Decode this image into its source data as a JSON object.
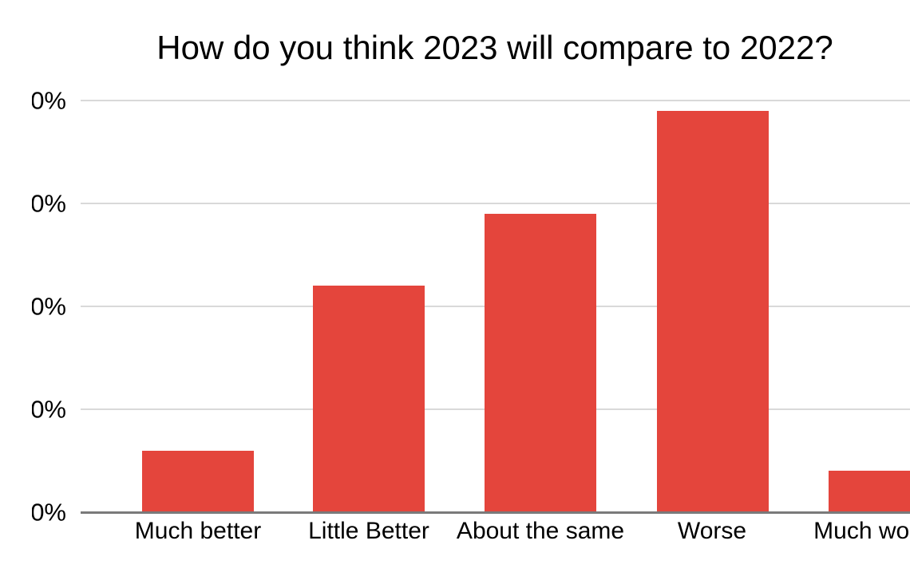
{
  "chart_data": {
    "type": "bar",
    "title": "How do you think 2023 will compare to 2022?",
    "categories": [
      "Much better",
      "Little Better",
      "About the same",
      "Worse",
      "Much worse"
    ],
    "values": [
      6,
      22,
      29,
      39,
      4
    ],
    "value_unit": "%",
    "xlabel": "",
    "ylabel": "",
    "ylim": [
      0,
      40
    ],
    "y_tick_interval": 10,
    "y_tick_labels_visible": [
      "0%",
      "0%",
      "0%",
      "0%",
      "0%"
    ],
    "y_axis_labels_clipped_at_left_edge": true,
    "grid": true,
    "legend": "none",
    "colors": {
      "bar": "#e4453c",
      "gridline": "#d9d9d9",
      "axis_line": "#7a7a7a",
      "text": "#000000",
      "background": "#ffffff"
    }
  }
}
